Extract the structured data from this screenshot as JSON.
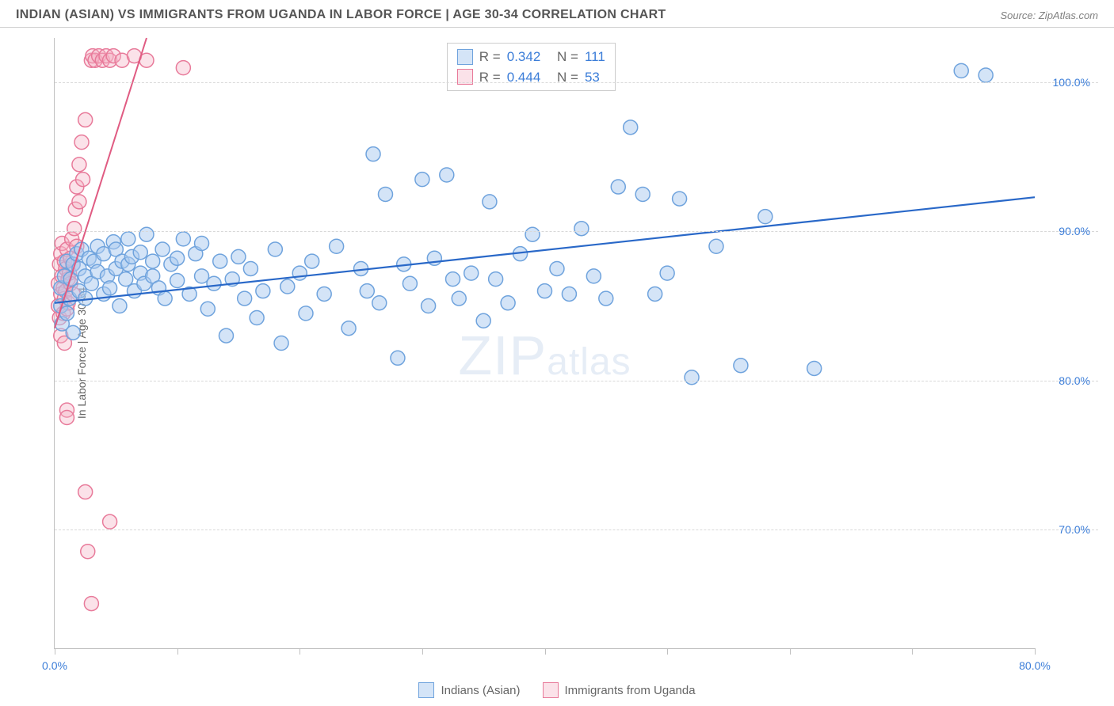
{
  "header": {
    "title": "INDIAN (ASIAN) VS IMMIGRANTS FROM UGANDA IN LABOR FORCE | AGE 30-34 CORRELATION CHART",
    "source": "Source: ZipAtlas.com"
  },
  "chart": {
    "type": "scatter",
    "ylabel": "In Labor Force | Age 30-34",
    "watermark_prefix": "ZIP",
    "watermark_suffix": "atlas",
    "background_color": "#ffffff",
    "grid_color": "#d8d8d8",
    "axis_color": "#c0c0c0",
    "xlim": [
      0,
      80
    ],
    "ylim": [
      62,
      103
    ],
    "xtick_positions": [
      0,
      10,
      20,
      30,
      40,
      50,
      60,
      70,
      80
    ],
    "xtick_labels": {
      "0": "0.0%",
      "80": "80.0%"
    },
    "ytick_positions": [
      70,
      80,
      90,
      100
    ],
    "ytick_labels": {
      "70": "70.0%",
      "80": "80.0%",
      "90": "90.0%",
      "100": "100.0%"
    },
    "tick_label_color": "#3b7dd8",
    "marker_radius": 9,
    "marker_stroke_width": 1.5,
    "series": {
      "blue": {
        "label": "Indians (Asian)",
        "fill": "#a9c9ef80",
        "stroke": "#6fa3dd",
        "trend_color": "#2968c8",
        "trend_width": 2.2,
        "R_label": "R =",
        "R": "0.342",
        "N_label": "N =",
        "N": "111",
        "trend": {
          "x1": 0,
          "y1": 85.2,
          "x2": 80,
          "y2": 92.3
        },
        "points": [
          [
            0.5,
            86.2
          ],
          [
            0.5,
            85.0
          ],
          [
            0.6,
            83.8
          ],
          [
            0.8,
            87.0
          ],
          [
            1.0,
            88.0
          ],
          [
            1.0,
            84.5
          ],
          [
            1.2,
            85.5
          ],
          [
            1.3,
            86.8
          ],
          [
            1.5,
            87.8
          ],
          [
            1.5,
            83.2
          ],
          [
            1.8,
            88.5
          ],
          [
            2.0,
            86.0
          ],
          [
            2.0,
            87.5
          ],
          [
            2.2,
            88.8
          ],
          [
            2.5,
            85.5
          ],
          [
            2.5,
            87.0
          ],
          [
            2.8,
            88.2
          ],
          [
            3.0,
            86.5
          ],
          [
            3.2,
            88.0
          ],
          [
            3.5,
            87.3
          ],
          [
            3.5,
            89.0
          ],
          [
            4.0,
            85.8
          ],
          [
            4.0,
            88.5
          ],
          [
            4.3,
            87.0
          ],
          [
            4.5,
            86.2
          ],
          [
            4.8,
            89.3
          ],
          [
            5.0,
            88.8
          ],
          [
            5.0,
            87.5
          ],
          [
            5.3,
            85.0
          ],
          [
            5.5,
            88.0
          ],
          [
            5.8,
            86.8
          ],
          [
            6.0,
            89.5
          ],
          [
            6.0,
            87.8
          ],
          [
            6.3,
            88.3
          ],
          [
            6.5,
            86.0
          ],
          [
            7.0,
            87.2
          ],
          [
            7.0,
            88.6
          ],
          [
            7.3,
            86.5
          ],
          [
            7.5,
            89.8
          ],
          [
            8.0,
            88.0
          ],
          [
            8.0,
            87.0
          ],
          [
            8.5,
            86.2
          ],
          [
            8.8,
            88.8
          ],
          [
            9.0,
            85.5
          ],
          [
            9.5,
            87.8
          ],
          [
            10.0,
            86.7
          ],
          [
            10.0,
            88.2
          ],
          [
            10.5,
            89.5
          ],
          [
            11.0,
            85.8
          ],
          [
            11.5,
            88.5
          ],
          [
            12.0,
            87.0
          ],
          [
            12.0,
            89.2
          ],
          [
            12.5,
            84.8
          ],
          [
            13.0,
            86.5
          ],
          [
            13.5,
            88.0
          ],
          [
            14.0,
            83.0
          ],
          [
            14.5,
            86.8
          ],
          [
            15.0,
            88.3
          ],
          [
            15.5,
            85.5
          ],
          [
            16.0,
            87.5
          ],
          [
            16.5,
            84.2
          ],
          [
            17.0,
            86.0
          ],
          [
            18.0,
            88.8
          ],
          [
            18.5,
            82.5
          ],
          [
            19.0,
            86.3
          ],
          [
            20.0,
            87.2
          ],
          [
            20.5,
            84.5
          ],
          [
            21.0,
            88.0
          ],
          [
            22.0,
            85.8
          ],
          [
            23.0,
            89.0
          ],
          [
            24.0,
            83.5
          ],
          [
            25.0,
            87.5
          ],
          [
            25.5,
            86.0
          ],
          [
            26.0,
            95.2
          ],
          [
            26.5,
            85.2
          ],
          [
            27.0,
            92.5
          ],
          [
            28.0,
            81.5
          ],
          [
            28.5,
            87.8
          ],
          [
            29.0,
            86.5
          ],
          [
            30.0,
            93.5
          ],
          [
            30.5,
            85.0
          ],
          [
            31.0,
            88.2
          ],
          [
            32.0,
            93.8
          ],
          [
            32.5,
            86.8
          ],
          [
            33.0,
            85.5
          ],
          [
            34.0,
            87.2
          ],
          [
            35.0,
            84.0
          ],
          [
            35.5,
            92.0
          ],
          [
            36.0,
            86.8
          ],
          [
            37.0,
            85.2
          ],
          [
            38.0,
            88.5
          ],
          [
            39.0,
            89.8
          ],
          [
            40.0,
            86.0
          ],
          [
            41.0,
            87.5
          ],
          [
            42.0,
            85.8
          ],
          [
            43.0,
            90.2
          ],
          [
            44.0,
            87.0
          ],
          [
            45.0,
            85.5
          ],
          [
            46.0,
            93.0
          ],
          [
            47.0,
            97.0
          ],
          [
            48.0,
            92.5
          ],
          [
            49.0,
            85.8
          ],
          [
            50.0,
            87.2
          ],
          [
            51.0,
            92.2
          ],
          [
            52.0,
            80.2
          ],
          [
            54.0,
            89.0
          ],
          [
            56.0,
            81.0
          ],
          [
            58.0,
            91.0
          ],
          [
            62.0,
            80.8
          ],
          [
            74.0,
            100.8
          ],
          [
            76.0,
            100.5
          ]
        ]
      },
      "pink": {
        "label": "Immigrants from Uganda",
        "fill": "#f4b3c560",
        "stroke": "#e87a9a",
        "trend_color": "#e05b82",
        "trend_width": 2.0,
        "R_label": "R =",
        "R": "0.444",
        "N_label": "N =",
        "N": "53",
        "trend": {
          "x1": 0,
          "y1": 83.5,
          "x2": 7.5,
          "y2": 103
        },
        "points": [
          [
            0.3,
            85.0
          ],
          [
            0.3,
            86.5
          ],
          [
            0.4,
            84.2
          ],
          [
            0.4,
            87.8
          ],
          [
            0.5,
            83.0
          ],
          [
            0.5,
            88.5
          ],
          [
            0.5,
            85.8
          ],
          [
            0.6,
            87.0
          ],
          [
            0.6,
            89.2
          ],
          [
            0.7,
            86.2
          ],
          [
            0.7,
            84.5
          ],
          [
            0.8,
            88.0
          ],
          [
            0.8,
            85.5
          ],
          [
            0.8,
            82.5
          ],
          [
            0.9,
            87.5
          ],
          [
            0.9,
            86.0
          ],
          [
            1.0,
            88.8
          ],
          [
            1.0,
            84.8
          ],
          [
            1.0,
            78.0
          ],
          [
            1.0,
            77.5
          ],
          [
            1.1,
            86.8
          ],
          [
            1.1,
            85.2
          ],
          [
            1.2,
            87.2
          ],
          [
            1.3,
            88.2
          ],
          [
            1.3,
            86.5
          ],
          [
            1.4,
            89.5
          ],
          [
            1.5,
            87.8
          ],
          [
            1.5,
            85.8
          ],
          [
            1.6,
            90.2
          ],
          [
            1.7,
            91.5
          ],
          [
            1.8,
            93.0
          ],
          [
            1.8,
            89.0
          ],
          [
            2.0,
            92.0
          ],
          [
            2.0,
            94.5
          ],
          [
            2.2,
            96.0
          ],
          [
            2.3,
            93.5
          ],
          [
            2.5,
            97.5
          ],
          [
            2.5,
            72.5
          ],
          [
            2.7,
            68.5
          ],
          [
            3.0,
            101.5
          ],
          [
            3.0,
            65.0
          ],
          [
            3.1,
            101.8
          ],
          [
            3.3,
            101.5
          ],
          [
            3.6,
            101.8
          ],
          [
            3.9,
            101.5
          ],
          [
            4.2,
            101.8
          ],
          [
            4.5,
            101.5
          ],
          [
            4.8,
            101.8
          ],
          [
            4.5,
            70.5
          ],
          [
            5.5,
            101.5
          ],
          [
            6.5,
            101.8
          ],
          [
            7.5,
            101.5
          ],
          [
            10.5,
            101.0
          ]
        ]
      }
    }
  },
  "legend": {
    "blue_label": "Indians (Asian)",
    "pink_label": "Immigrants from Uganda"
  }
}
